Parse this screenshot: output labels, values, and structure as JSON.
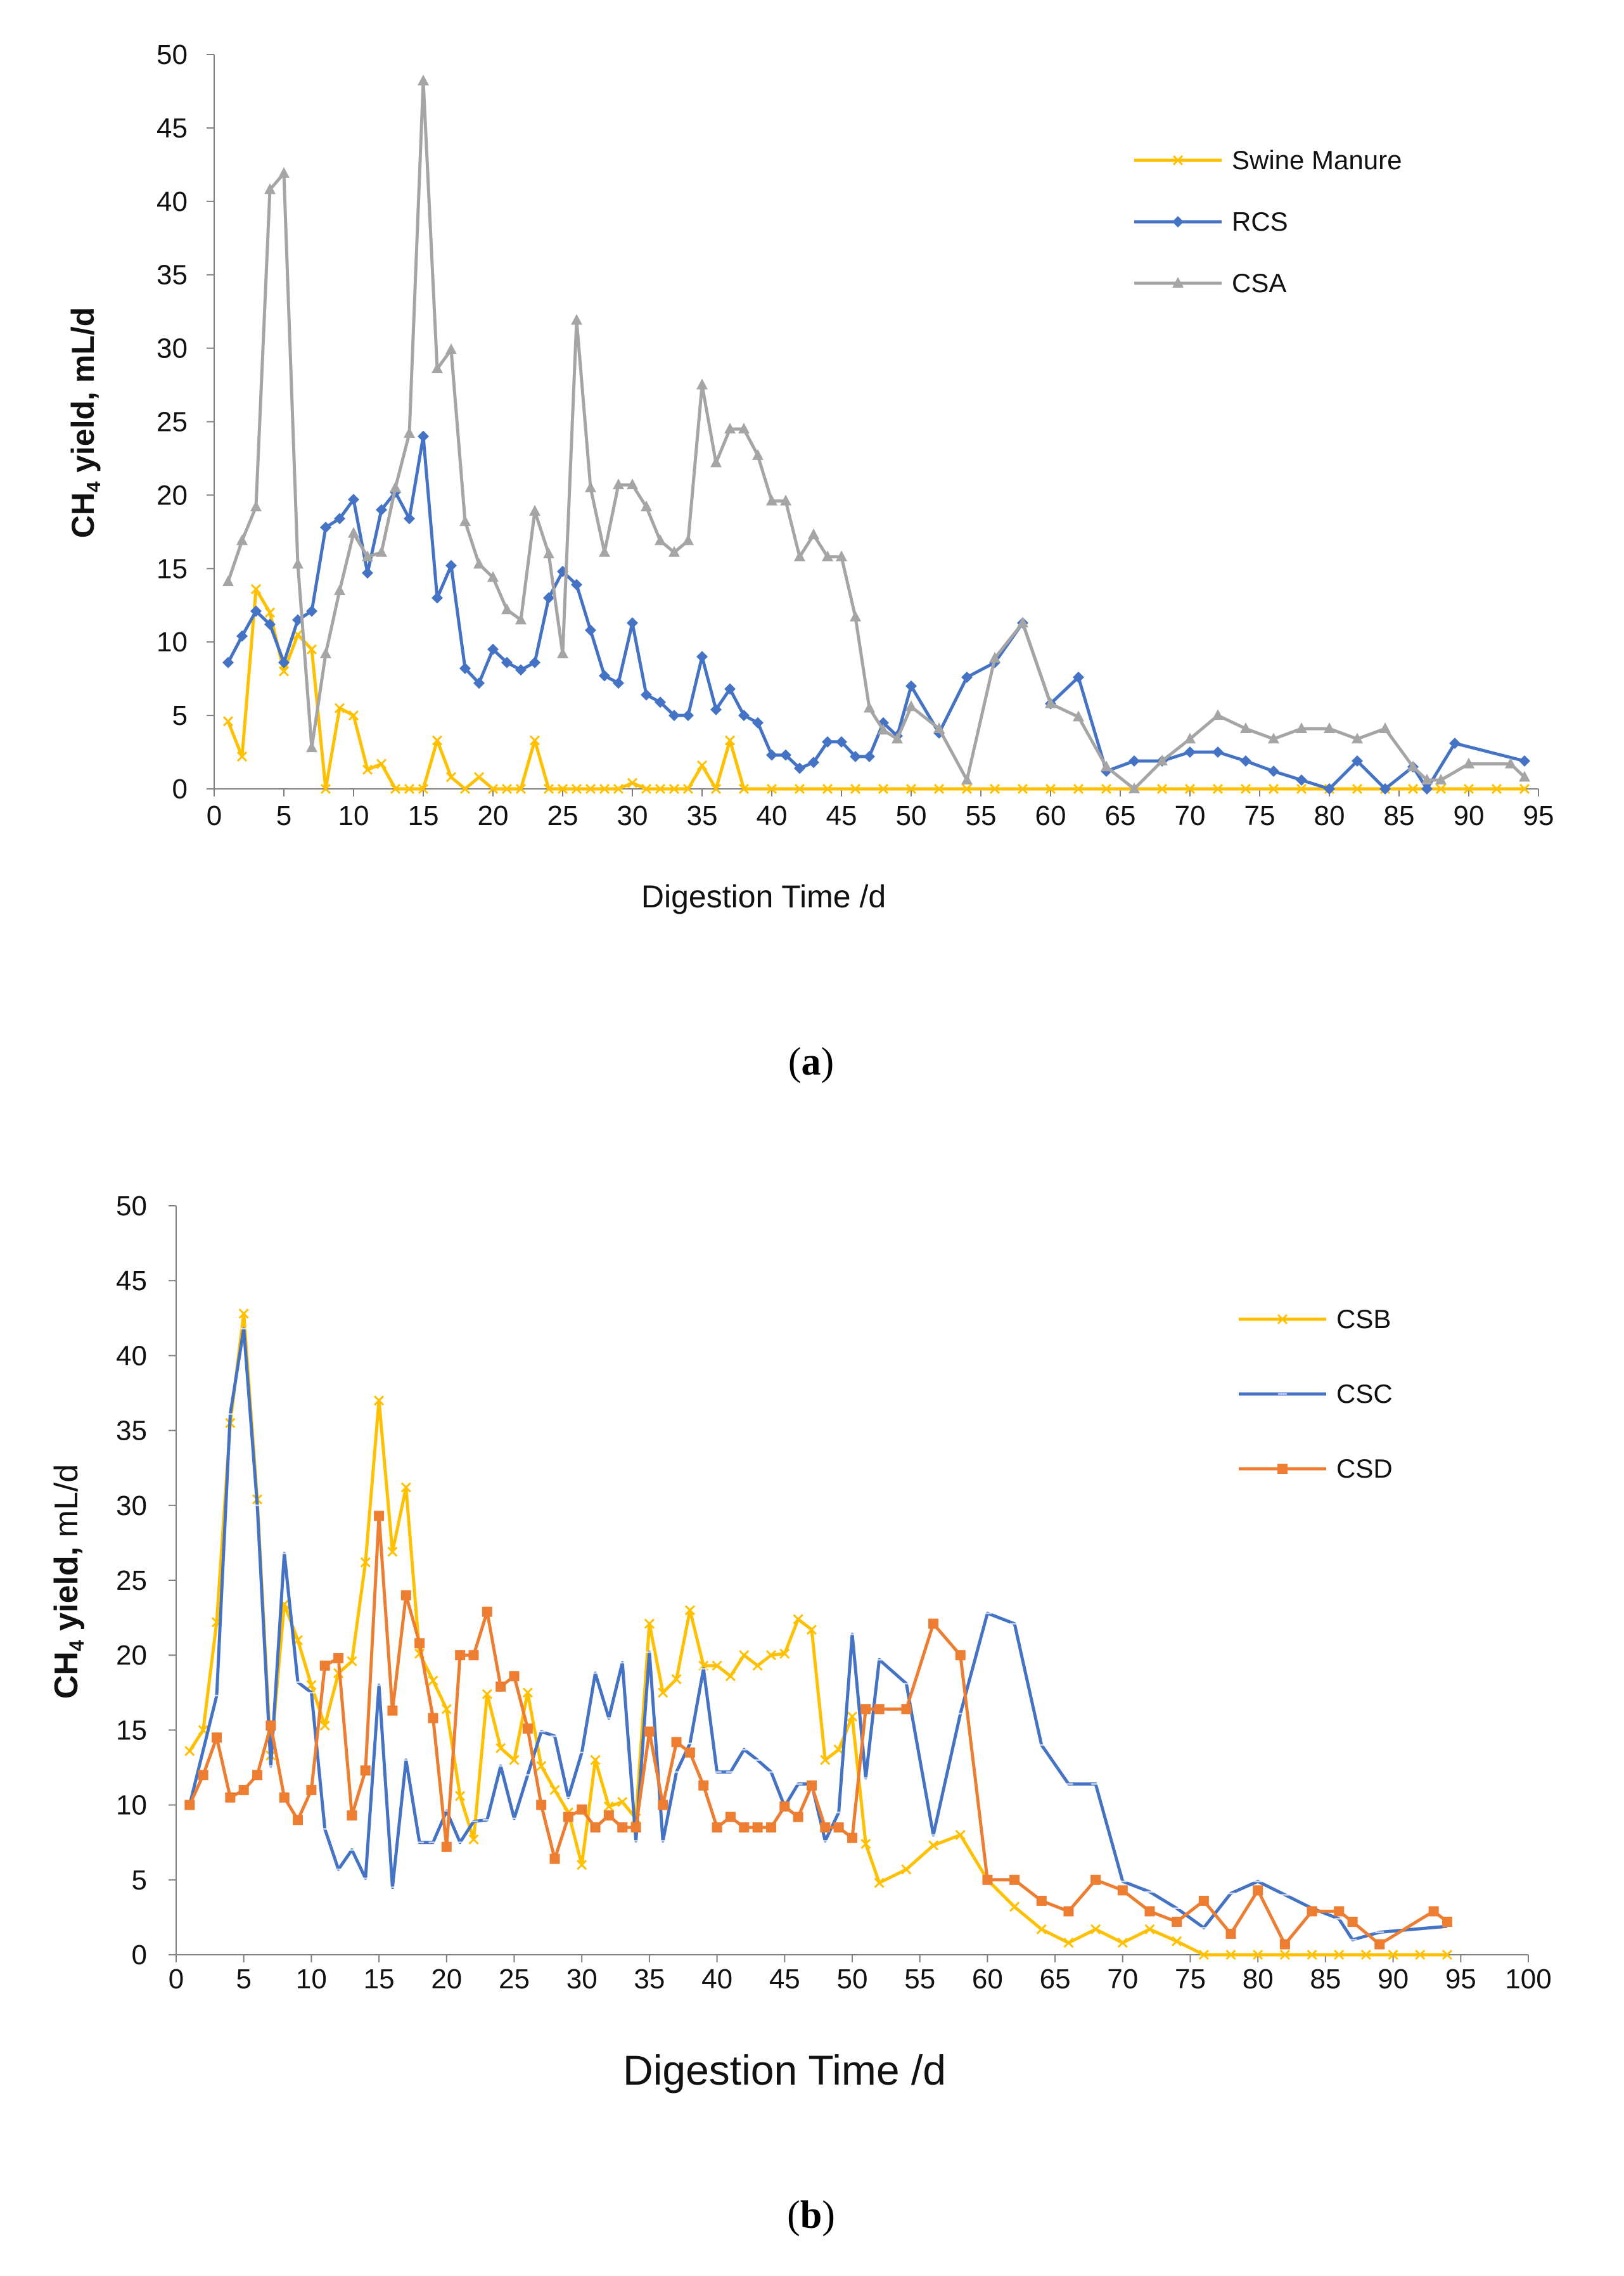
{
  "charts": [
    {
      "id": "a",
      "caption": "(a)",
      "caption_letter": "a",
      "legend": {
        "placement": "top-right"
      },
      "chart_data": {
        "type": "line",
        "title": "",
        "xlabel": "Digestion Time /d",
        "ylabel_prefix": "CH",
        "ylabel_sub": "4",
        "ylabel_suffix": " yield, mL/d",
        "xlim": [
          0,
          95
        ],
        "ylim": [
          0,
          50
        ],
        "xticks": [
          0,
          5,
          10,
          15,
          20,
          25,
          30,
          35,
          40,
          45,
          50,
          55,
          60,
          65,
          70,
          75,
          80,
          85,
          90,
          95
        ],
        "yticks": [
          0,
          5,
          10,
          15,
          20,
          25,
          30,
          35,
          40,
          45,
          50
        ],
        "series": [
          {
            "name": "Swine Manure",
            "color": "#FFC000",
            "marker": "x",
            "x": [
              1,
              2,
              3,
              4,
              5,
              6,
              7,
              8,
              9,
              10,
              11,
              12,
              13,
              14,
              15,
              16,
              17,
              18,
              19,
              20,
              21,
              22,
              23,
              24,
              25,
              26,
              27,
              28,
              29,
              30,
              31,
              32,
              33,
              34,
              35,
              36,
              37,
              38,
              40,
              42,
              44,
              46,
              48,
              50,
              52,
              54,
              56,
              58,
              60,
              62,
              64,
              66,
              68,
              70,
              72,
              74,
              76,
              78,
              80,
              82,
              84,
              86,
              88,
              90,
              92,
              94
            ],
            "y": [
              4.6,
              2.2,
              13.6,
              12,
              8,
              10.5,
              9.5,
              0,
              5.5,
              5,
              1.3,
              1.7,
              0,
              0,
              0,
              3.3,
              0.8,
              0,
              0.8,
              0,
              0,
              0,
              3.3,
              0,
              0,
              0,
              0,
              0,
              0,
              0.4,
              0,
              0,
              0,
              0,
              1.6,
              0,
              3.3,
              0,
              0,
              0,
              0,
              0,
              0,
              0,
              0,
              0,
              0,
              0,
              0,
              0,
              0,
              0,
              0,
              0,
              0,
              0,
              0,
              0,
              0,
              0,
              0,
              0,
              0,
              0,
              0,
              0
            ]
          },
          {
            "name": "RCS",
            "color": "#4472C4",
            "marker": "diamond",
            "x": [
              1,
              2,
              3,
              4,
              5,
              6,
              7,
              8,
              9,
              10,
              11,
              12,
              13,
              14,
              15,
              16,
              17,
              18,
              19,
              20,
              21,
              22,
              23,
              24,
              25,
              26,
              27,
              28,
              29,
              30,
              31,
              32,
              33,
              34,
              35,
              36,
              37,
              38,
              39,
              40,
              41,
              42,
              43,
              44,
              45,
              46,
              47,
              48,
              49,
              50,
              52,
              54,
              56,
              58,
              60,
              62,
              64,
              66,
              68,
              70,
              72,
              74,
              76,
              78,
              80,
              82,
              84,
              86,
              87,
              89,
              94
            ],
            "y": [
              8.6,
              10.4,
              12.1,
              11.2,
              8.6,
              11.5,
              12.1,
              17.8,
              18.4,
              19.7,
              14.7,
              19,
              20.2,
              18.4,
              24,
              13,
              15.2,
              8.2,
              7.2,
              9.5,
              8.6,
              8.1,
              8.6,
              13,
              14.8,
              13.9,
              10.8,
              7.7,
              7.2,
              11.3,
              6.4,
              5.9,
              5,
              5,
              9,
              5.4,
              6.8,
              5,
              4.5,
              2.3,
              2.3,
              1.4,
              1.8,
              3.2,
              3.2,
              2.2,
              2.2,
              4.5,
              3.6,
              7,
              3.8,
              7.6,
              8.6,
              11.3,
              5.8,
              7.6,
              1.2,
              1.9,
              1.9,
              2.5,
              2.5,
              1.9,
              1.2,
              0.6,
              0,
              1.9,
              0,
              1.5,
              0,
              3.1,
              1.9
            ]
          },
          {
            "name": "CSA",
            "color": "#A5A5A5",
            "marker": "triangle",
            "x": [
              1,
              2,
              3,
              4,
              5,
              6,
              7,
              8,
              9,
              10,
              11,
              12,
              13,
              14,
              15,
              16,
              17,
              18,
              19,
              20,
              21,
              22,
              23,
              24,
              25,
              26,
              27,
              28,
              29,
              30,
              31,
              32,
              33,
              34,
              35,
              36,
              37,
              38,
              39,
              40,
              41,
              42,
              43,
              44,
              45,
              46,
              47,
              48,
              49,
              50,
              52,
              54,
              56,
              58,
              60,
              62,
              64,
              66,
              68,
              70,
              72,
              74,
              76,
              78,
              80,
              82,
              84,
              86,
              87,
              88,
              90,
              93,
              94
            ],
            "y": [
              14.1,
              16.9,
              19.2,
              40.8,
              41.9,
              15.3,
              2.8,
              9.2,
              13.5,
              17.4,
              15.8,
              16.1,
              20.5,
              24.2,
              48.2,
              28.6,
              29.9,
              18.2,
              15.3,
              14.4,
              12.2,
              11.5,
              18.9,
              16,
              9.2,
              31.9,
              20.5,
              16.1,
              20.7,
              20.7,
              19.2,
              16.9,
              16.1,
              16.9,
              27.5,
              22.2,
              24.5,
              24.5,
              22.7,
              19.6,
              19.6,
              15.8,
              17.3,
              15.8,
              15.8,
              11.7,
              5.5,
              4,
              3.4,
              5.6,
              4.1,
              0.6,
              8.9,
              11.3,
              5.8,
              4.9,
              1.5,
              0,
              1.9,
              3.4,
              5,
              4.1,
              3.4,
              4.1,
              4.1,
              3.4,
              4.1,
              1.5,
              0.6,
              0.6,
              1.7,
              1.7,
              0.8
            ]
          }
        ]
      }
    },
    {
      "id": "b",
      "caption": "(b)",
      "caption_letter": "b",
      "legend": {
        "placement": "top-right"
      },
      "chart_data": {
        "type": "line",
        "title": "",
        "xlabel": "Digestion Time   /d",
        "ylabel_prefix": "CH",
        "ylabel_sub": "4",
        "ylabel_bold": " yield,",
        "ylabel_suffix": " mL/d",
        "xlim": [
          0,
          100
        ],
        "ylim": [
          0,
          50
        ],
        "xticks": [
          0,
          5,
          10,
          15,
          20,
          25,
          30,
          35,
          40,
          45,
          50,
          55,
          60,
          65,
          70,
          75,
          80,
          85,
          90,
          95,
          100
        ],
        "yticks": [
          0,
          5,
          10,
          15,
          20,
          25,
          30,
          35,
          40,
          45,
          50
        ],
        "series": [
          {
            "name": "CSB",
            "color": "#FFC000",
            "marker": "x",
            "x": [
              1,
              2,
              3,
              4,
              5,
              6,
              7,
              8,
              9,
              10,
              11,
              12,
              13,
              14,
              15,
              16,
              17,
              18,
              19,
              20,
              21,
              22,
              23,
              24,
              25,
              26,
              27,
              28,
              29,
              30,
              31,
              32,
              33,
              34,
              35,
              36,
              37,
              38,
              39,
              40,
              41,
              42,
              43,
              44,
              45,
              46,
              47,
              48,
              49,
              50,
              51,
              52,
              54,
              56,
              58,
              60,
              62,
              64,
              66,
              68,
              70,
              72,
              74,
              76,
              78,
              80,
              82,
              84,
              86,
              88,
              90,
              92,
              94
            ],
            "y": [
              13.6,
              15,
              22.2,
              35.5,
              42.8,
              30.4,
              13.3,
              23.4,
              21,
              18,
              15.3,
              18.8,
              19.6,
              26.2,
              37,
              26.9,
              31.2,
              20.1,
              18.3,
              16.4,
              10.6,
              7.7,
              17.4,
              13.8,
              13,
              17.5,
              12.6,
              11,
              9.5,
              6,
              13,
              9.9,
              10.2,
              9.1,
              22.1,
              17.5,
              18.4,
              23,
              19.3,
              19.3,
              18.6,
              20,
              19.3,
              20,
              20.1,
              22.4,
              21.7,
              13,
              13.7,
              15.9,
              7.4,
              4.8,
              5.7,
              7.3,
              8,
              5,
              3.2,
              1.7,
              0.8,
              1.7,
              0.8,
              1.7,
              0.9,
              0,
              0,
              0,
              0,
              0,
              0,
              0,
              0,
              0,
              0
            ]
          },
          {
            "name": "CSC",
            "color": "#4472C4",
            "marker": "dash",
            "x": [
              1,
              3,
              4,
              5,
              6,
              7,
              8,
              9,
              10,
              11,
              12,
              13,
              14,
              15,
              16,
              17,
              18,
              19,
              20,
              21,
              22,
              23,
              24,
              25,
              26,
              27,
              28,
              29,
              30,
              31,
              32,
              33,
              34,
              35,
              36,
              37,
              38,
              39,
              40,
              41,
              42,
              43,
              44,
              45,
              46,
              47,
              48,
              49,
              50,
              51,
              52,
              54,
              56,
              58,
              60,
              62,
              64,
              66,
              68,
              70,
              72,
              74,
              76,
              78,
              80,
              82,
              84,
              86,
              87,
              89,
              94
            ],
            "y": [
              10,
              17.3,
              36.1,
              41.8,
              30,
              12.6,
              26.8,
              18.2,
              17.5,
              8.4,
              5.7,
              7,
              5.1,
              18,
              4.5,
              13,
              7.5,
              7.5,
              9.6,
              7.5,
              8.9,
              9,
              12.6,
              9.1,
              12,
              14.9,
              14.6,
              10.5,
              13.5,
              18.8,
              15.8,
              19.5,
              7.6,
              20.2,
              7.6,
              12.2,
              14.1,
              19.1,
              12.2,
              12.2,
              13.7,
              13,
              12.2,
              9.9,
              11.4,
              11.4,
              7.6,
              9.5,
              21.4,
              11.8,
              19.7,
              18.1,
              8,
              16.1,
              22.8,
              22.1,
              14,
              11.4,
              11.4,
              4.9,
              4.2,
              3.1,
              1.8,
              4.1,
              4.9,
              4,
              3.1,
              2.4,
              1,
              1.5,
              1.9
            ]
          },
          {
            "name": "CSD",
            "color": "#ED7D31",
            "marker": "square",
            "x": [
              1,
              2,
              3,
              4,
              5,
              6,
              7,
              8,
              9,
              10,
              11,
              12,
              13,
              14,
              15,
              16,
              17,
              18,
              19,
              20,
              21,
              22,
              23,
              24,
              25,
              26,
              27,
              28,
              29,
              30,
              31,
              32,
              33,
              34,
              35,
              36,
              37,
              38,
              39,
              40,
              41,
              42,
              43,
              44,
              45,
              46,
              47,
              48,
              49,
              50,
              51,
              52,
              54,
              56,
              58,
              60,
              62,
              64,
              66,
              68,
              70,
              72,
              74,
              76,
              78,
              80,
              82,
              84,
              86,
              87,
              89,
              93,
              94
            ],
            "y": [
              10,
              12,
              14.5,
              10.5,
              11,
              12,
              15.3,
              10.5,
              9,
              11,
              19.3,
              19.8,
              9.3,
              12.3,
              29.3,
              16.3,
              24,
              20.8,
              15.8,
              7.2,
              20,
              20,
              22.9,
              17.9,
              18.6,
              15.1,
              10,
              6.4,
              9.2,
              9.7,
              8.5,
              9.3,
              8.5,
              8.5,
              14.9,
              10,
              14.2,
              13.5,
              11.3,
              8.5,
              9.2,
              8.5,
              8.5,
              8.5,
              9.9,
              9.2,
              11.3,
              8.5,
              8.5,
              7.8,
              16.4,
              16.4,
              16.4,
              22.1,
              20,
              5,
              5,
              3.6,
              2.9,
              5,
              4.3,
              2.9,
              2.2,
              3.6,
              1.4,
              4.3,
              0.7,
              2.9,
              2.9,
              2.2,
              0.7,
              2.9,
              2.2
            ]
          }
        ]
      }
    }
  ]
}
